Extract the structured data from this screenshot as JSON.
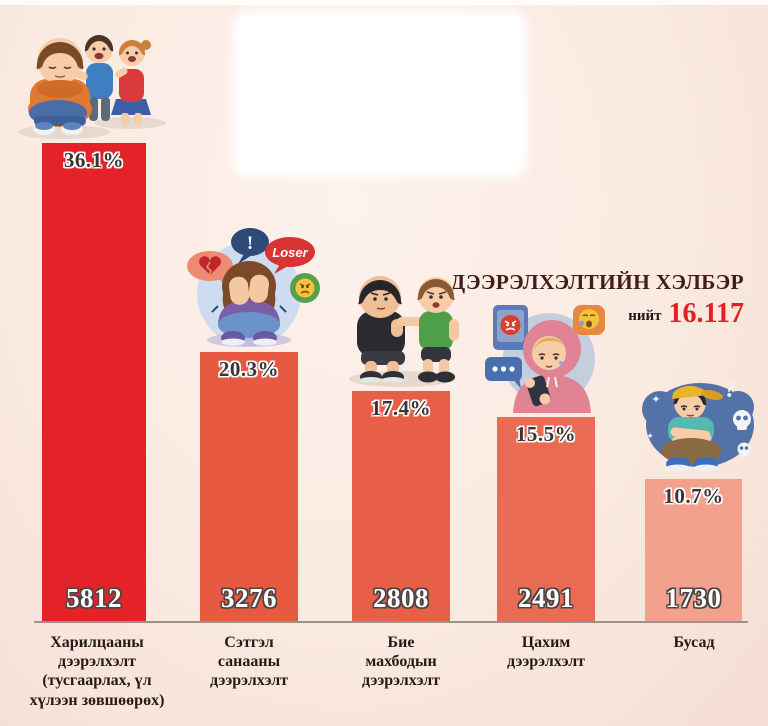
{
  "header": {
    "title": "ДЭЭРЭЛХЭЛТИЙН ХЭЛБЭР",
    "total_label": "нийт",
    "total_value": "16.117"
  },
  "colors": {
    "title_text": "#431d18",
    "total_value_text": "#e02024",
    "background_center": "#fdf2ec",
    "background_edge": "#f5ded3",
    "baseline": "#9e9189"
  },
  "chart_data": {
    "type": "bar",
    "title": "ДЭЭРЭЛХЭЛТИЙН ХЭЛБЭР",
    "total": 16117,
    "categories": [
      "Харилцааны дээрэлхэлт (тусгаарлах, үл хүлээн зөвшөөрөх)",
      "Сэтгэл санааны дээрэлхэлт",
      "Бие махбодын дээрэлхэлт",
      "Цахим дээрэлхэлт",
      "Бусад"
    ],
    "values": [
      5812,
      3276,
      2808,
      2491,
      1730
    ],
    "percent_labels": [
      "36.1%",
      "20.3%",
      "17.4%",
      "15.5%",
      "10.7%"
    ],
    "bar_colors": [
      "#e32328",
      "#e75a41",
      "#e75f47",
      "#ea6b54",
      "#f2a28c"
    ],
    "ylim": [
      0,
      5812
    ],
    "grid": false,
    "legend": false,
    "bars": [
      {
        "label": "Харилцааны дээрэлхэлт (тусгаарлах, үл хүлээн зөвшөөрөх)",
        "percent": "36.1%",
        "value": "5812",
        "color": "#e32328",
        "illustration": "kids-mocking-isolated-sad-boy"
      },
      {
        "label": "Сэтгэл санааны дээрэлхэлт",
        "percent": "20.3%",
        "value": "3276",
        "color": "#e75a41",
        "illustration": "girl-covering-face-loser-speech-bubbles"
      },
      {
        "label": "Бие махбодын дээрэлхэлт",
        "percent": "17.4%",
        "value": "2808",
        "color": "#e75f47",
        "illustration": "boy-grabbing-another-boy"
      },
      {
        "label": "Цахим дээрэлхэлт",
        "percent": "15.5%",
        "value": "2491",
        "color": "#ea6b54",
        "illustration": "girl-in-hoodie-crying-at-phone"
      },
      {
        "label": "Бусад",
        "percent": "10.7%",
        "value": "1730",
        "color": "#f2a28c",
        "illustration": "sad-boy-with-question-and-skulls"
      }
    ]
  }
}
